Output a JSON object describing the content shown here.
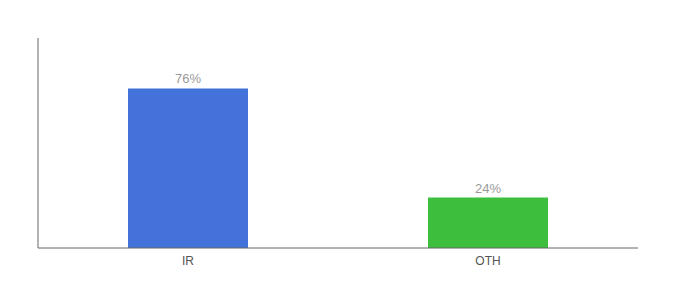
{
  "chart_data": {
    "type": "bar",
    "categories": [
      "IR",
      "OTH"
    ],
    "values": [
      76,
      24
    ],
    "value_labels": [
      "76%",
      "24%"
    ],
    "data_labels": true,
    "colors": [
      "#4472db",
      "#3dbf3d"
    ],
    "ylim": [
      0,
      100
    ],
    "grid": false,
    "tick_labels": "x"
  }
}
